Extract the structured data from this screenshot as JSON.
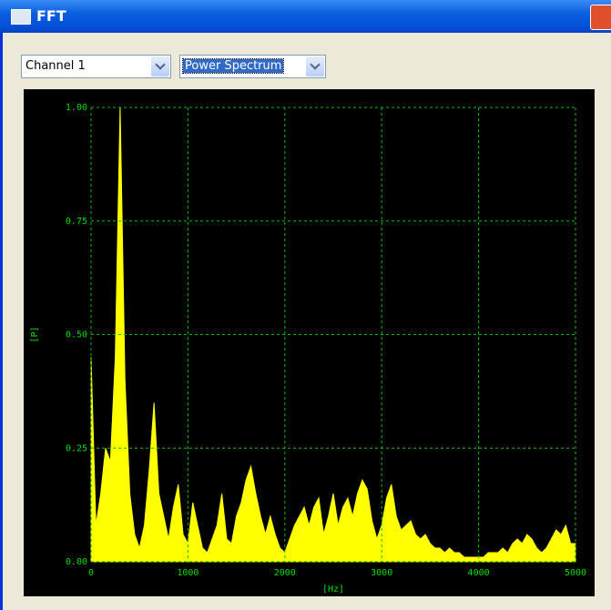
{
  "window": {
    "title": "FFT",
    "channel": "Channel 1",
    "mode": "Power Spectrum"
  },
  "chart_data": {
    "type": "area",
    "xlabel": "[Hz]",
    "ylabel": "[P]",
    "color": "#ffff00",
    "grid": true,
    "xlim": [
      0,
      5000
    ],
    "ylim": [
      0,
      1
    ],
    "xticks": [
      0,
      1000,
      2000,
      3000,
      4000,
      5000
    ],
    "yticks": [
      {
        "value": 0,
        "label": "0.00"
      },
      {
        "value": 0.25,
        "label": "0.25"
      },
      {
        "value": 0.5,
        "label": "0.50"
      },
      {
        "value": 0.75,
        "label": "0.75"
      },
      {
        "value": 1,
        "label": "1.00"
      }
    ],
    "x": [
      0,
      50,
      100,
      150,
      200,
      250,
      300,
      350,
      400,
      450,
      500,
      550,
      600,
      650,
      700,
      750,
      800,
      850,
      900,
      950,
      1000,
      1050,
      1100,
      1150,
      1200,
      1250,
      1300,
      1350,
      1400,
      1450,
      1500,
      1550,
      1600,
      1650,
      1700,
      1750,
      1800,
      1850,
      1900,
      1950,
      2000,
      2050,
      2100,
      2150,
      2200,
      2250,
      2300,
      2350,
      2400,
      2450,
      2500,
      2550,
      2600,
      2650,
      2700,
      2750,
      2800,
      2850,
      2900,
      2950,
      3000,
      3050,
      3100,
      3150,
      3200,
      3250,
      3300,
      3350,
      3400,
      3450,
      3500,
      3550,
      3600,
      3650,
      3700,
      3750,
      3800,
      3850,
      3900,
      3950,
      4000,
      4050,
      4100,
      4150,
      4200,
      4250,
      4300,
      4350,
      4400,
      4450,
      4500,
      4550,
      4600,
      4650,
      4700,
      4750,
      4800,
      4850,
      4900,
      4950,
      5000
    ],
    "values": [
      0.45,
      0.08,
      0.15,
      0.25,
      0.22,
      0.45,
      1.0,
      0.4,
      0.15,
      0.06,
      0.03,
      0.08,
      0.2,
      0.35,
      0.15,
      0.1,
      0.05,
      0.12,
      0.17,
      0.06,
      0.04,
      0.13,
      0.08,
      0.03,
      0.02,
      0.05,
      0.08,
      0.15,
      0.05,
      0.04,
      0.1,
      0.13,
      0.18,
      0.21,
      0.15,
      0.1,
      0.06,
      0.1,
      0.06,
      0.03,
      0.02,
      0.05,
      0.08,
      0.1,
      0.12,
      0.08,
      0.12,
      0.14,
      0.06,
      0.1,
      0.15,
      0.08,
      0.12,
      0.14,
      0.1,
      0.15,
      0.18,
      0.16,
      0.09,
      0.05,
      0.08,
      0.14,
      0.17,
      0.1,
      0.07,
      0.08,
      0.09,
      0.06,
      0.05,
      0.06,
      0.04,
      0.03,
      0.03,
      0.02,
      0.03,
      0.02,
      0.02,
      0.01,
      0.01,
      0.01,
      0.01,
      0.01,
      0.02,
      0.02,
      0.02,
      0.03,
      0.02,
      0.04,
      0.05,
      0.04,
      0.06,
      0.05,
      0.03,
      0.02,
      0.03,
      0.05,
      0.07,
      0.06,
      0.08,
      0.04,
      0.04
    ]
  }
}
